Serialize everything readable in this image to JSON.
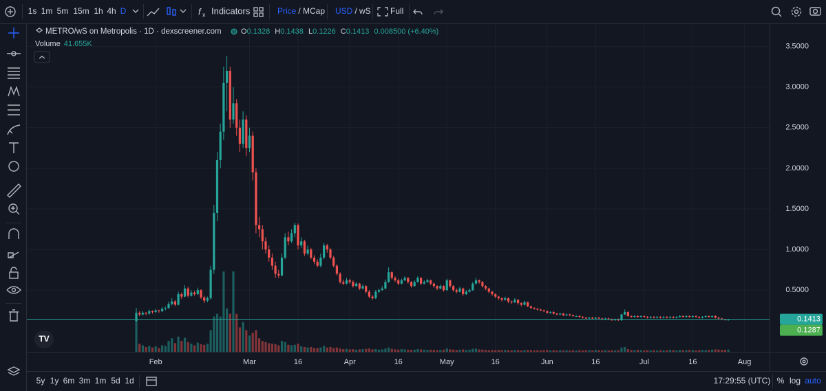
{
  "toolbar": {
    "intervals": [
      "1s",
      "1m",
      "5m",
      "15m",
      "1h",
      "4h",
      "D"
    ],
    "indicators": "Indicators",
    "price": "Price",
    "mcap": "/ MCap",
    "currency": "USD",
    "quote": "/ wS",
    "full": "Full"
  },
  "chart_data": {
    "type": "candlestick",
    "title": "METRO/wS on Metropolis · 1D · dexscreener.com",
    "legend": {
      "o": "O",
      "h": "H",
      "l": "L",
      "c": "C",
      "change": "0.008500 (+6.40%)"
    },
    "volume_title": "Volume",
    "volume_label": "41.655K",
    "up_color": "#26a69a",
    "down_color": "#ef5350",
    "ylim": [
      -0.26,
      3.75
    ],
    "vlim": [
      0,
      6000000
    ],
    "yticks": [
      {
        "value": 0.5,
        "label": "0.5000"
      },
      {
        "value": 1,
        "label": "1.0000"
      },
      {
        "value": 1.5,
        "label": "1.5000"
      },
      {
        "value": 2,
        "label": "2.0000"
      },
      {
        "value": 2.5,
        "label": "2.5000"
      },
      {
        "value": 3,
        "label": "3.0000"
      },
      {
        "value": 3.5,
        "label": "3.5000"
      }
    ],
    "xticks": [
      {
        "index": 6,
        "label": "Feb"
      },
      {
        "index": 35,
        "label": "Mar"
      },
      {
        "index": 50,
        "label": "16"
      },
      {
        "index": 66,
        "label": "Apr"
      },
      {
        "index": 81,
        "label": "16"
      },
      {
        "index": 96,
        "label": "May"
      },
      {
        "index": 111,
        "label": "16"
      },
      {
        "index": 127,
        "label": "Jun"
      },
      {
        "index": 142,
        "label": "16"
      },
      {
        "index": 157,
        "label": "Jul"
      },
      {
        "index": 172,
        "label": "16"
      },
      {
        "index": 188,
        "label": "Aug"
      }
    ],
    "price_line": 0.1287,
    "candles": [
      [
        0.12,
        0.28,
        0.11,
        0.22
      ],
      [
        0.22,
        0.24,
        0.18,
        0.2
      ],
      [
        0.2,
        0.24,
        0.19,
        0.22
      ],
      [
        0.22,
        0.23,
        0.19,
        0.21
      ],
      [
        0.21,
        0.26,
        0.2,
        0.24
      ],
      [
        0.24,
        0.25,
        0.21,
        0.23
      ],
      [
        0.23,
        0.27,
        0.22,
        0.25
      ],
      [
        0.25,
        0.26,
        0.22,
        0.24
      ],
      [
        0.24,
        0.29,
        0.23,
        0.27
      ],
      [
        0.27,
        0.3,
        0.25,
        0.28
      ],
      [
        0.28,
        0.36,
        0.27,
        0.33
      ],
      [
        0.33,
        0.4,
        0.31,
        0.36
      ],
      [
        0.36,
        0.38,
        0.3,
        0.32
      ],
      [
        0.32,
        0.48,
        0.31,
        0.45
      ],
      [
        0.45,
        0.47,
        0.39,
        0.42
      ],
      [
        0.42,
        0.56,
        0.41,
        0.52
      ],
      [
        0.52,
        0.54,
        0.41,
        0.43
      ],
      [
        0.43,
        0.5,
        0.42,
        0.47
      ],
      [
        0.47,
        0.49,
        0.43,
        0.45
      ],
      [
        0.45,
        0.53,
        0.44,
        0.5
      ],
      [
        0.5,
        0.51,
        0.39,
        0.41
      ],
      [
        0.41,
        0.43,
        0.34,
        0.37
      ],
      [
        0.37,
        0.42,
        0.35,
        0.4
      ],
      [
        0.4,
        0.8,
        0.38,
        0.75
      ],
      [
        0.75,
        1.55,
        0.7,
        1.45
      ],
      [
        1.45,
        2.2,
        1.35,
        2.1
      ],
      [
        2.1,
        2.55,
        2.0,
        2.45
      ],
      [
        2.45,
        3.25,
        2.35,
        3.05
      ],
      [
        3.05,
        3.38,
        2.7,
        3.2
      ],
      [
        3.2,
        3.25,
        2.5,
        2.6
      ],
      [
        2.6,
        3.0,
        2.55,
        2.8
      ],
      [
        2.8,
        2.85,
        2.4,
        2.5
      ],
      [
        2.5,
        2.6,
        2.2,
        2.3
      ],
      [
        2.3,
        2.7,
        2.25,
        2.6
      ],
      [
        2.6,
        2.65,
        2.15,
        2.25
      ],
      [
        2.25,
        2.5,
        2.2,
        2.4
      ],
      [
        2.4,
        2.45,
        1.85,
        1.95
      ],
      [
        1.95,
        2.0,
        1.2,
        1.3
      ],
      [
        1.3,
        1.4,
        1.15,
        1.25
      ],
      [
        1.25,
        1.3,
        1.0,
        1.1
      ],
      [
        1.1,
        1.15,
        0.95,
        1.0
      ],
      [
        1.0,
        1.05,
        0.85,
        0.9
      ],
      [
        0.9,
        0.95,
        0.75,
        0.8
      ],
      [
        0.8,
        0.85,
        0.65,
        0.7
      ],
      [
        0.7,
        0.75,
        0.65,
        0.68
      ],
      [
        0.68,
        0.95,
        0.67,
        0.9
      ],
      [
        0.9,
        1.2,
        0.88,
        1.15
      ],
      [
        1.15,
        1.22,
        1.05,
        1.1
      ],
      [
        1.1,
        1.25,
        1.08,
        1.2
      ],
      [
        1.2,
        1.33,
        1.15,
        1.3
      ],
      [
        1.3,
        1.32,
        1.0,
        1.05
      ],
      [
        1.05,
        1.15,
        1.02,
        1.1
      ],
      [
        1.1,
        1.12,
        0.92,
        0.95
      ],
      [
        0.95,
        1.05,
        0.93,
        1.0
      ],
      [
        1.0,
        1.02,
        0.88,
        0.9
      ],
      [
        0.9,
        0.93,
        0.82,
        0.85
      ],
      [
        0.85,
        0.88,
        0.78,
        0.8
      ],
      [
        0.8,
        0.95,
        0.78,
        0.9
      ],
      [
        0.9,
        1.08,
        0.88,
        1.05
      ],
      [
        1.05,
        1.07,
        0.96,
        1.0
      ],
      [
        1.0,
        1.02,
        0.88,
        0.9
      ],
      [
        0.9,
        0.92,
        0.78,
        0.8
      ],
      [
        0.8,
        0.82,
        0.68,
        0.7
      ],
      [
        0.7,
        0.72,
        0.58,
        0.6
      ],
      [
        0.6,
        0.63,
        0.56,
        0.58
      ],
      [
        0.58,
        0.65,
        0.57,
        0.62
      ],
      [
        0.62,
        0.64,
        0.58,
        0.6
      ],
      [
        0.6,
        0.62,
        0.53,
        0.55
      ],
      [
        0.55,
        0.6,
        0.54,
        0.58
      ],
      [
        0.58,
        0.59,
        0.5,
        0.52
      ],
      [
        0.52,
        0.57,
        0.51,
        0.55
      ],
      [
        0.55,
        0.56,
        0.46,
        0.48
      ],
      [
        0.48,
        0.5,
        0.4,
        0.42
      ],
      [
        0.42,
        0.44,
        0.38,
        0.4
      ],
      [
        0.4,
        0.5,
        0.39,
        0.48
      ],
      [
        0.48,
        0.52,
        0.46,
        0.5
      ],
      [
        0.5,
        0.55,
        0.49,
        0.52
      ],
      [
        0.52,
        0.63,
        0.51,
        0.6
      ],
      [
        0.6,
        0.78,
        0.59,
        0.72
      ],
      [
        0.72,
        0.73,
        0.63,
        0.65
      ],
      [
        0.65,
        0.67,
        0.6,
        0.62
      ],
      [
        0.62,
        0.64,
        0.56,
        0.58
      ],
      [
        0.58,
        0.64,
        0.57,
        0.62
      ],
      [
        0.62,
        0.67,
        0.61,
        0.65
      ],
      [
        0.65,
        0.66,
        0.58,
        0.6
      ],
      [
        0.6,
        0.61,
        0.53,
        0.55
      ],
      [
        0.55,
        0.62,
        0.54,
        0.6
      ],
      [
        0.6,
        0.67,
        0.59,
        0.65
      ],
      [
        0.65,
        0.66,
        0.56,
        0.58
      ],
      [
        0.58,
        0.62,
        0.57,
        0.6
      ],
      [
        0.6,
        0.64,
        0.59,
        0.62
      ],
      [
        0.62,
        0.63,
        0.56,
        0.58
      ],
      [
        0.58,
        0.59,
        0.53,
        0.55
      ],
      [
        0.55,
        0.56,
        0.5,
        0.52
      ],
      [
        0.52,
        0.57,
        0.51,
        0.55
      ],
      [
        0.55,
        0.56,
        0.48,
        0.5
      ],
      [
        0.5,
        0.64,
        0.49,
        0.62
      ],
      [
        0.62,
        0.63,
        0.53,
        0.55
      ],
      [
        0.55,
        0.56,
        0.48,
        0.5
      ],
      [
        0.5,
        0.52,
        0.46,
        0.48
      ],
      [
        0.48,
        0.54,
        0.47,
        0.52
      ],
      [
        0.52,
        0.53,
        0.43,
        0.45
      ],
      [
        0.45,
        0.5,
        0.44,
        0.48
      ],
      [
        0.48,
        0.52,
        0.47,
        0.5
      ],
      [
        0.5,
        0.6,
        0.49,
        0.58
      ],
      [
        0.58,
        0.65,
        0.57,
        0.62
      ],
      [
        0.62,
        0.63,
        0.58,
        0.6
      ],
      [
        0.6,
        0.61,
        0.53,
        0.55
      ],
      [
        0.55,
        0.56,
        0.5,
        0.52
      ],
      [
        0.52,
        0.53,
        0.46,
        0.48
      ],
      [
        0.48,
        0.49,
        0.43,
        0.45
      ],
      [
        0.45,
        0.46,
        0.4,
        0.42
      ],
      [
        0.42,
        0.43,
        0.38,
        0.4
      ],
      [
        0.4,
        0.41,
        0.36,
        0.38
      ],
      [
        0.38,
        0.42,
        0.37,
        0.4
      ],
      [
        0.4,
        0.41,
        0.34,
        0.36
      ],
      [
        0.36,
        0.37,
        0.33,
        0.35
      ],
      [
        0.35,
        0.4,
        0.34,
        0.38
      ],
      [
        0.38,
        0.39,
        0.32,
        0.34
      ],
      [
        0.34,
        0.35,
        0.3,
        0.32
      ],
      [
        0.32,
        0.37,
        0.31,
        0.35
      ],
      [
        0.35,
        0.36,
        0.29,
        0.3
      ],
      [
        0.3,
        0.31,
        0.27,
        0.28
      ],
      [
        0.28,
        0.29,
        0.26,
        0.27
      ],
      [
        0.27,
        0.28,
        0.25,
        0.26
      ],
      [
        0.26,
        0.27,
        0.24,
        0.25
      ],
      [
        0.25,
        0.26,
        0.23,
        0.24
      ],
      [
        0.24,
        0.25,
        0.21,
        0.22
      ],
      [
        0.22,
        0.24,
        0.21,
        0.23
      ],
      [
        0.23,
        0.24,
        0.2,
        0.21
      ],
      [
        0.21,
        0.22,
        0.19,
        0.2
      ],
      [
        0.2,
        0.22,
        0.19,
        0.21
      ],
      [
        0.21,
        0.22,
        0.18,
        0.19
      ],
      [
        0.19,
        0.21,
        0.18,
        0.2
      ],
      [
        0.2,
        0.21,
        0.18,
        0.19
      ],
      [
        0.19,
        0.2,
        0.17,
        0.18
      ],
      [
        0.18,
        0.19,
        0.17,
        0.18
      ],
      [
        0.18,
        0.19,
        0.16,
        0.17
      ],
      [
        0.17,
        0.18,
        0.15,
        0.16
      ],
      [
        0.16,
        0.17,
        0.14,
        0.15
      ],
      [
        0.15,
        0.17,
        0.14,
        0.16
      ],
      [
        0.16,
        0.17,
        0.14,
        0.15
      ],
      [
        0.15,
        0.17,
        0.14,
        0.16
      ],
      [
        0.16,
        0.17,
        0.14,
        0.15
      ],
      [
        0.15,
        0.16,
        0.13,
        0.14
      ],
      [
        0.14,
        0.16,
        0.13,
        0.15
      ],
      [
        0.15,
        0.16,
        0.13,
        0.14
      ],
      [
        0.14,
        0.15,
        0.12,
        0.13
      ],
      [
        0.13,
        0.15,
        0.12,
        0.14
      ],
      [
        0.14,
        0.15,
        0.12,
        0.13
      ],
      [
        0.13,
        0.21,
        0.12,
        0.2
      ],
      [
        0.2,
        0.26,
        0.19,
        0.23
      ],
      [
        0.23,
        0.24,
        0.17,
        0.18
      ],
      [
        0.18,
        0.19,
        0.16,
        0.17
      ],
      [
        0.17,
        0.19,
        0.16,
        0.18
      ],
      [
        0.18,
        0.19,
        0.16,
        0.17
      ],
      [
        0.17,
        0.19,
        0.16,
        0.18
      ],
      [
        0.18,
        0.19,
        0.16,
        0.17
      ],
      [
        0.17,
        0.18,
        0.15,
        0.16
      ],
      [
        0.16,
        0.18,
        0.15,
        0.17
      ],
      [
        0.17,
        0.18,
        0.15,
        0.16
      ],
      [
        0.16,
        0.18,
        0.15,
        0.17
      ],
      [
        0.17,
        0.18,
        0.15,
        0.16
      ],
      [
        0.16,
        0.18,
        0.15,
        0.17
      ],
      [
        0.17,
        0.18,
        0.15,
        0.16
      ],
      [
        0.16,
        0.18,
        0.15,
        0.17
      ],
      [
        0.17,
        0.18,
        0.15,
        0.16
      ],
      [
        0.16,
        0.18,
        0.15,
        0.17
      ],
      [
        0.17,
        0.19,
        0.16,
        0.18
      ],
      [
        0.18,
        0.19,
        0.16,
        0.17
      ],
      [
        0.17,
        0.19,
        0.16,
        0.18
      ],
      [
        0.18,
        0.19,
        0.16,
        0.17
      ],
      [
        0.17,
        0.19,
        0.16,
        0.18
      ],
      [
        0.18,
        0.19,
        0.16,
        0.17
      ],
      [
        0.17,
        0.18,
        0.15,
        0.16
      ],
      [
        0.16,
        0.18,
        0.15,
        0.17
      ],
      [
        0.17,
        0.19,
        0.16,
        0.18
      ],
      [
        0.18,
        0.19,
        0.16,
        0.17
      ],
      [
        0.17,
        0.19,
        0.16,
        0.18
      ],
      [
        0.18,
        0.19,
        0.15,
        0.16
      ],
      [
        0.16,
        0.17,
        0.14,
        0.15
      ],
      [
        0.15,
        0.16,
        0.13,
        0.14
      ],
      [
        0.14,
        0.145,
        0.125,
        0.1328
      ],
      [
        0.1328,
        0.1438,
        0.1226,
        0.1413
      ]
    ],
    "volumes": [
      570000,
      150000,
      120000,
      90000,
      110000,
      80000,
      100000,
      70000,
      120000,
      110000,
      200000,
      250000,
      160000,
      280000,
      200000,
      260000,
      180000,
      150000,
      120000,
      170000,
      140000,
      130000,
      150000,
      400000,
      650000,
      700000,
      650000,
      1480000,
      800000,
      700000,
      1480000,
      700000,
      450000,
      550000,
      400000,
      300000,
      350000,
      400000,
      250000,
      200000,
      180000,
      160000,
      150000,
      140000,
      120000,
      200000,
      180000,
      130000,
      120000,
      130000,
      150000,
      100000,
      90000,
      80000,
      90000,
      70000,
      70000,
      80000,
      110000,
      80000,
      90000,
      70000,
      80000,
      60000,
      50000,
      55000,
      45000,
      50000,
      40000,
      45000,
      50000,
      55000,
      60000,
      45000,
      50000,
      40000,
      45000,
      60000,
      80000,
      55000,
      45000,
      40000,
      50000,
      45000,
      40000,
      35000,
      40000,
      50000,
      45000,
      40000,
      35000,
      40000,
      35000,
      30000,
      35000,
      40000,
      60000,
      45000,
      40000,
      35000,
      40000,
      45000,
      35000,
      40000,
      55000,
      60000,
      45000,
      40000,
      35000,
      30000,
      35000,
      30000,
      35000,
      30000,
      35000,
      30000,
      25000,
      35000,
      30000,
      25000,
      30000,
      35000,
      30000,
      25000,
      30000,
      25000,
      30000,
      35000,
      25000,
      30000,
      25000,
      30000,
      25000,
      30000,
      25000,
      30000,
      25000,
      30000,
      25000,
      30000,
      30000,
      25000,
      35000,
      30000,
      25000,
      30000,
      25000,
      30000,
      25000,
      30000,
      80000,
      90000,
      50000,
      35000,
      30000,
      35000,
      30000,
      25000,
      30000,
      25000,
      30000,
      25000,
      30000,
      25000,
      30000,
      35000,
      30000,
      25000,
      35000,
      30000,
      30000,
      35000,
      30000,
      25000,
      30000,
      35000,
      30000,
      35000,
      40000,
      45000,
      40000,
      35000,
      38000,
      41655
    ]
  },
  "bottom_bar": {
    "ranges": [
      "5y",
      "1y",
      "6m",
      "3m",
      "1m",
      "5d",
      "1d"
    ],
    "time": "17:29:55 (UTC)",
    "percent": "%",
    "log": "log",
    "auto": "auto"
  }
}
